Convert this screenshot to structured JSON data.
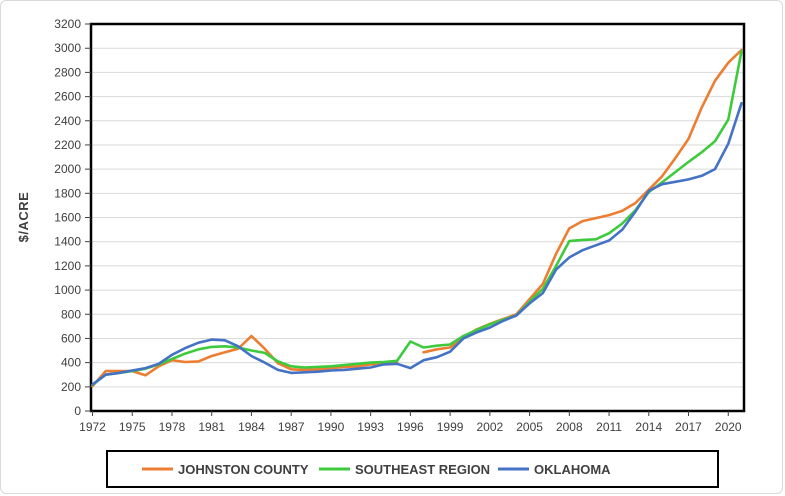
{
  "figure": {
    "background": "#FFFFFF",
    "outer_border_color": "#D9D9D9"
  },
  "chart_data": {
    "type": "line",
    "title": "",
    "xlabel": "",
    "ylabel": "$/ACRE",
    "ylim": [
      0,
      3200
    ],
    "y_tick_step": 200,
    "y_ticks": [
      0,
      200,
      400,
      600,
      800,
      1000,
      1200,
      1400,
      1600,
      1800,
      2000,
      2200,
      2400,
      2600,
      2800,
      3000,
      3200
    ],
    "x": [
      1972,
      1973,
      1974,
      1975,
      1976,
      1977,
      1978,
      1979,
      1980,
      1981,
      1982,
      1983,
      1984,
      1985,
      1986,
      1987,
      1988,
      1989,
      1990,
      1991,
      1992,
      1993,
      1994,
      1995,
      1996,
      1997,
      1998,
      1999,
      2000,
      2001,
      2002,
      2003,
      2004,
      2005,
      2006,
      2007,
      2008,
      2009,
      2010,
      2011,
      2012,
      2013,
      2014,
      2015,
      2016,
      2017,
      2018,
      2019,
      2020,
      2021
    ],
    "x_tick_labels": [
      "1972",
      "1975",
      "1978",
      "1981",
      "1984",
      "1987",
      "1990",
      "1993",
      "1996",
      "1999",
      "2002",
      "2005",
      "2008",
      "2011",
      "2014",
      "2017",
      "2020"
    ],
    "grid": "horizontal",
    "gridline_color": "#D9D9D9",
    "axis_color": "#000000",
    "tick_label_color": "#404040",
    "legend_position": "bottom",
    "series": [
      {
        "name": "JOHNSTON COUNTY",
        "color": "#ED7D31",
        "values": [
          205,
          330,
          330,
          330,
          295,
          370,
          420,
          405,
          410,
          455,
          485,
          515,
          620,
          515,
          395,
          345,
          340,
          345,
          355,
          365,
          370,
          385,
          395,
          400,
          null,
          485,
          510,
          525,
          610,
          675,
          720,
          760,
          800,
          925,
          1050,
          1300,
          1510,
          1570,
          1595,
          1620,
          1655,
          1720,
          1830,
          1940,
          2090,
          2250,
          2510,
          2730,
          2880,
          2985
        ]
      },
      {
        "name": "SOUTHEAST REGION",
        "color": "#3DCB3D",
        "values": [
          215,
          300,
          315,
          330,
          350,
          385,
          430,
          475,
          510,
          530,
          535,
          525,
          500,
          480,
          410,
          370,
          360,
          365,
          370,
          380,
          390,
          400,
          405,
          415,
          575,
          525,
          540,
          550,
          620,
          670,
          715,
          755,
          790,
          905,
          1010,
          1200,
          1405,
          1415,
          1420,
          1470,
          1550,
          1660,
          1810,
          1890,
          1975,
          2060,
          2140,
          2230,
          2410,
          2975
        ]
      },
      {
        "name": "OKLAHOMA",
        "color": "#4472C4",
        "values": [
          220,
          300,
          315,
          335,
          355,
          390,
          465,
          520,
          565,
          590,
          585,
          535,
          455,
          400,
          340,
          315,
          320,
          325,
          335,
          340,
          350,
          360,
          385,
          390,
          355,
          420,
          445,
          490,
          600,
          650,
          690,
          745,
          790,
          890,
          975,
          1170,
          1270,
          1330,
          1370,
          1410,
          1500,
          1650,
          1820,
          1875,
          1895,
          1915,
          1945,
          2000,
          2210,
          2545
        ]
      }
    ]
  }
}
